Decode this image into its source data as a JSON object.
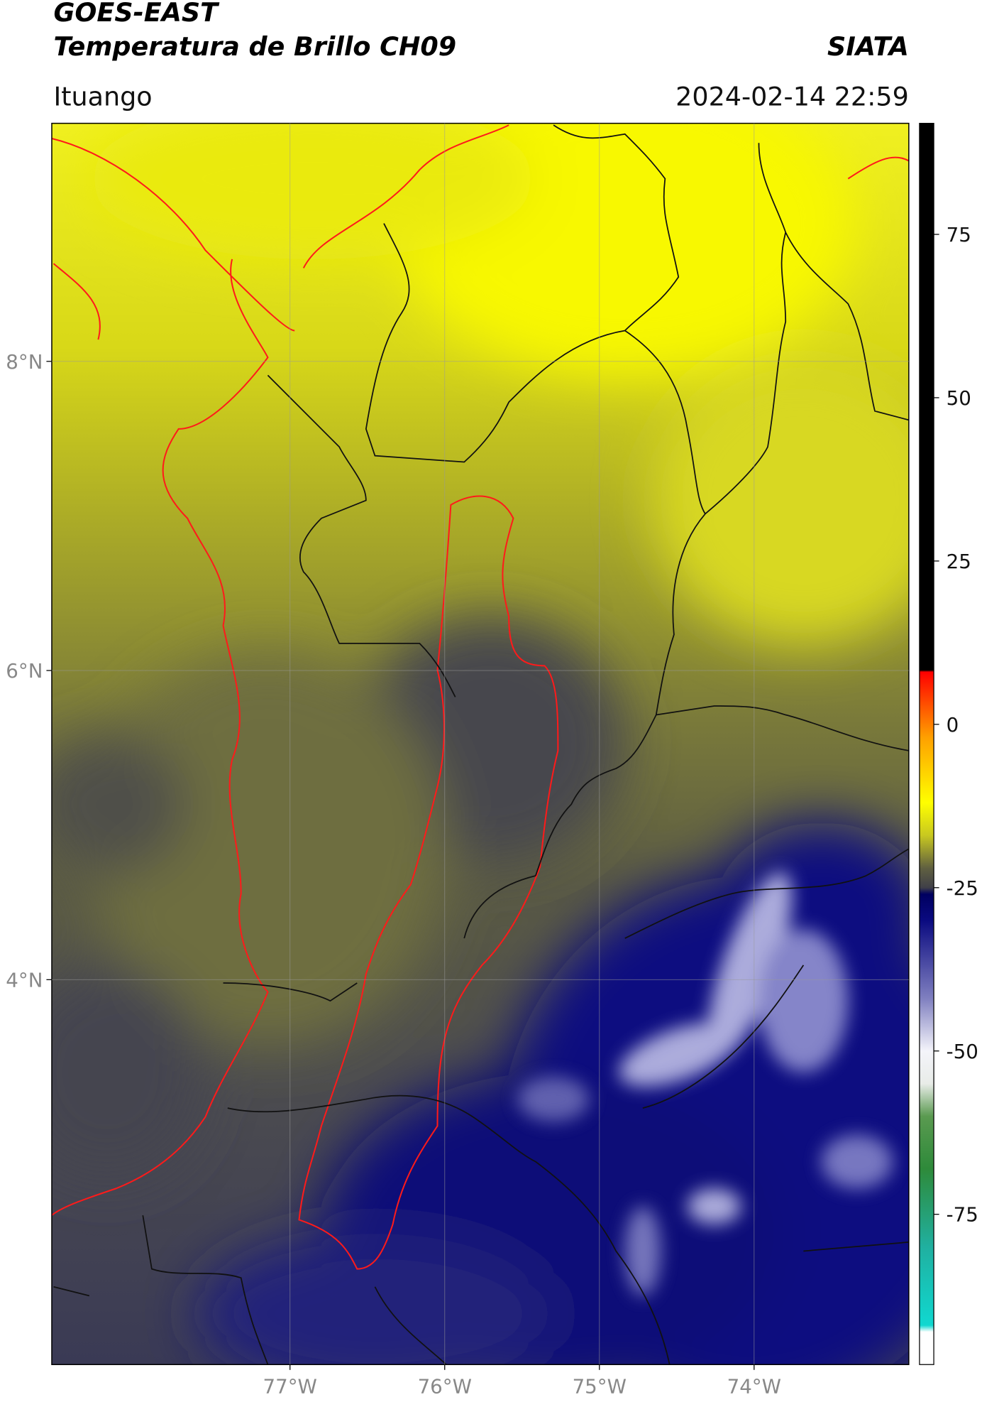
{
  "header": {
    "title": "GOES-EAST",
    "subtitle": "Temperatura de Brillo CH09",
    "brand": "SIATA",
    "location": "Ituango",
    "datetime": "2024-02-14 22:59"
  },
  "map": {
    "lon_range": [
      -78.54,
      -73.0
    ],
    "lat_range": [
      1.51,
      9.54
    ],
    "grid": true,
    "xticks": [
      {
        "value": -77,
        "label": "77°W"
      },
      {
        "value": -76,
        "label": "76°W"
      },
      {
        "value": -75,
        "label": "75°W"
      },
      {
        "value": -74,
        "label": "74°W"
      }
    ],
    "yticks": [
      {
        "value": 8,
        "label": "8°N"
      },
      {
        "value": 6,
        "label": "6°N"
      },
      {
        "value": 4,
        "label": "4°N"
      }
    ]
  },
  "colorbar": {
    "range": [
      -98,
      92
    ],
    "ticks": [
      75,
      50,
      25,
      0,
      -25,
      -50,
      -75
    ],
    "stops": [
      {
        "value": -98,
        "color": "#ffffff"
      },
      {
        "value": -93,
        "color": "#ffffff"
      },
      {
        "value": -92,
        "color": "#10d8d0"
      },
      {
        "value": -80,
        "color": "#20b0a0"
      },
      {
        "value": -68,
        "color": "#2e8a3a"
      },
      {
        "value": -60,
        "color": "#5a9a50"
      },
      {
        "value": -55,
        "color": "#e8ece8"
      },
      {
        "value": -50,
        "color": "#f4f4fa"
      },
      {
        "value": -42,
        "color": "#8080c0"
      },
      {
        "value": -30,
        "color": "#0a0a80"
      },
      {
        "value": -26,
        "color": "#000060"
      },
      {
        "value": -25,
        "color": "#404048"
      },
      {
        "value": -22,
        "color": "#606040"
      },
      {
        "value": -17,
        "color": "#c8c820"
      },
      {
        "value": -12,
        "color": "#ffff00"
      },
      {
        "value": -2,
        "color": "#ffa000"
      },
      {
        "value": 8,
        "color": "#ff0000"
      },
      {
        "value": 8.3,
        "color": "#000000"
      },
      {
        "value": 92,
        "color": "#000000"
      }
    ]
  }
}
